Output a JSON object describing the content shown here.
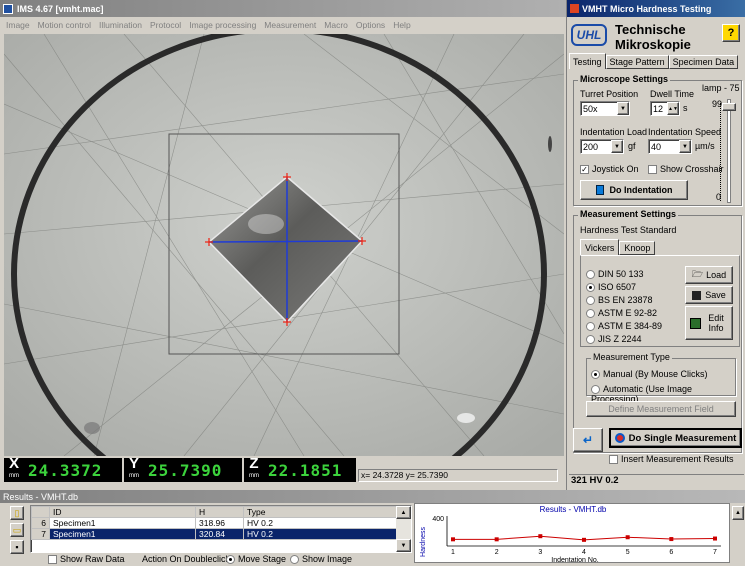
{
  "ims_window": {
    "title": "IMS 4.67 [vmht.mac]",
    "menu": [
      "Image",
      "Motion control",
      "Illumination",
      "Protocol",
      "Image processing",
      "Measurement",
      "Macro",
      "Options",
      "Help"
    ]
  },
  "position_bar": {
    "x_label": "X",
    "x_unit": "mm",
    "x_value": "24.3372",
    "y_label": "Y",
    "y_unit": "mm",
    "y_value": "25.7390",
    "z_label": "Z",
    "z_unit": "mm",
    "z_value": "22.1851",
    "cursor_readout": "x= 24.3728 y= 25.7390"
  },
  "vmht": {
    "title": "VMHT Micro Hardness Testing",
    "logo": "UHL",
    "brand_line1": "Technische",
    "brand_line2": "Mikroskopie",
    "help_label": "?",
    "tabs": [
      "Testing",
      "Stage Pattern",
      "Specimen Data"
    ],
    "microscope_settings": {
      "title": "Microscope Settings",
      "turret_label": "Turret Position",
      "turret_value": "50x",
      "dwell_label": "Dwell Time",
      "dwell_value": "12",
      "dwell_unit": "s",
      "lamp_label": "lamp - 75",
      "lamp_max": "99",
      "lamp_min": "0",
      "load_label": "Indentation Load",
      "load_value": "200",
      "load_unit": "gf",
      "speed_label": "Indentation Speed",
      "speed_value": "40",
      "speed_unit": "µm/s",
      "joystick_label": "Joystick On",
      "crosshair_label": "Show Crosshair",
      "do_indentation_label": "Do Indentation"
    },
    "measurement_settings": {
      "title": "Measurement Settings",
      "standard_label": "Hardness Test Standard",
      "tabs": [
        "Vickers",
        "Knoop"
      ],
      "standards": [
        "DIN 50 133",
        "ISO 6507",
        "BS EN 23878",
        "ASTM E 92-82",
        "ASTM E 384-89",
        "JIS Z 2244"
      ],
      "selected_standard": "ISO 6507",
      "load_label": "Load",
      "save_label": "Save",
      "edit_info_label": "Edit Info",
      "type_label": "Measurement Type",
      "manual_label": "Manual (By Mouse Clicks)",
      "automatic_label": "Automatic (Use Image Processing)",
      "define_field_label": "Define Measurement Field",
      "do_single_label": "Do Single Measurement",
      "insert_results_label": "Insert Measurement Results",
      "status_value": "321 HV 0.2"
    }
  },
  "results": {
    "title": "Results - VMHT.db",
    "columns": [
      "ID",
      "H",
      "Type"
    ],
    "rows": [
      {
        "num": "6",
        "id": "Specimen1",
        "h": "318.96",
        "type": "HV 0.2"
      },
      {
        "num": "7",
        "id": "Specimen1",
        "h": "320.84",
        "type": "HV 0.2"
      }
    ],
    "raw_data_label": "Show Raw Data",
    "action_label": "Action On Doubleclick:",
    "move_stage_label": "Move Stage",
    "show_image_label": "Show Image"
  },
  "chart_data": {
    "type": "line",
    "title": "Results - VMHT.db",
    "xlabel": "Indentation No.",
    "ylabel": "Hardness",
    "x": [
      1,
      2,
      3,
      4,
      5,
      6,
      7
    ],
    "values": [
      318,
      318,
      330,
      316,
      326,
      319,
      321
    ],
    "ylim": [
      300,
      400
    ],
    "yticks": [
      400
    ],
    "color": "#cc0000"
  }
}
